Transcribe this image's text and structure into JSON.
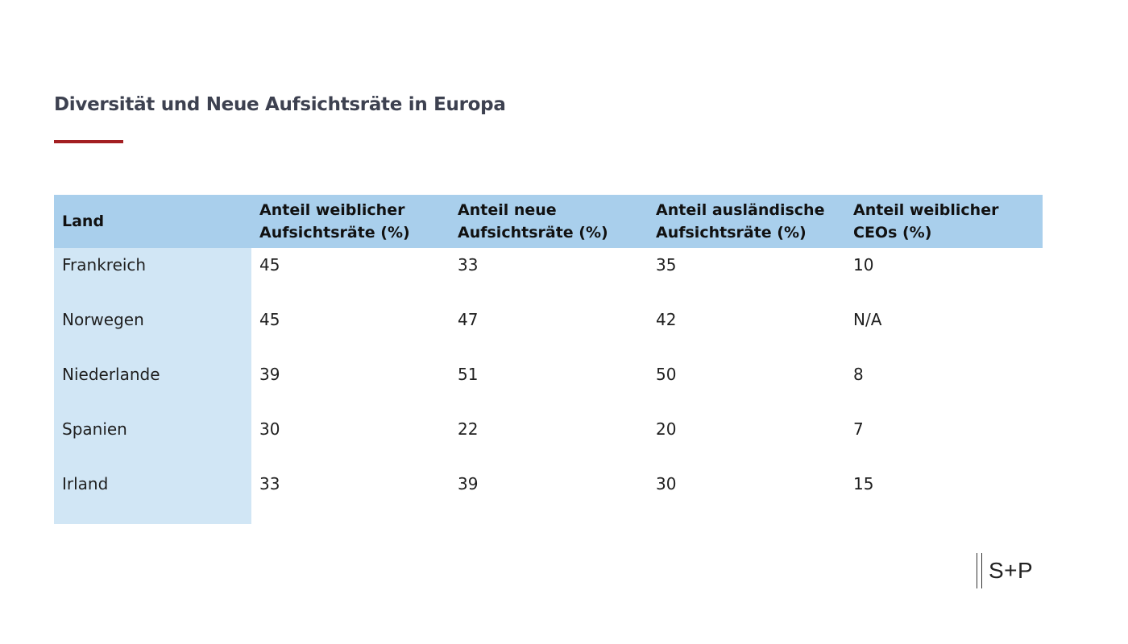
{
  "title": "Diversität und Neue Aufsichtsräte in Europa",
  "colors": {
    "title": "#3d4150",
    "accent_rule": "#a31f22",
    "header_bg": "#a9cfec",
    "first_column_bg": "#d1e6f5"
  },
  "table": {
    "headers": [
      "Land",
      "Anteil weiblicher Aufsichtsräte (%)",
      "Anteil neue Aufsichtsräte (%)",
      "Anteil ausländische Aufsichtsräte (%)",
      "Anteil weiblicher CEOs (%)"
    ],
    "rows": [
      [
        "Frankreich",
        "45",
        "33",
        "35",
        "10"
      ],
      [
        "Norwegen",
        "45",
        "47",
        "42",
        "N/A"
      ],
      [
        "Niederlande",
        "39",
        "51",
        "50",
        "8"
      ],
      [
        "Spanien",
        "30",
        "22",
        "20",
        "7"
      ],
      [
        "Irland",
        "33",
        "39",
        "30",
        "15"
      ]
    ]
  },
  "logo": {
    "text": "S+P"
  }
}
